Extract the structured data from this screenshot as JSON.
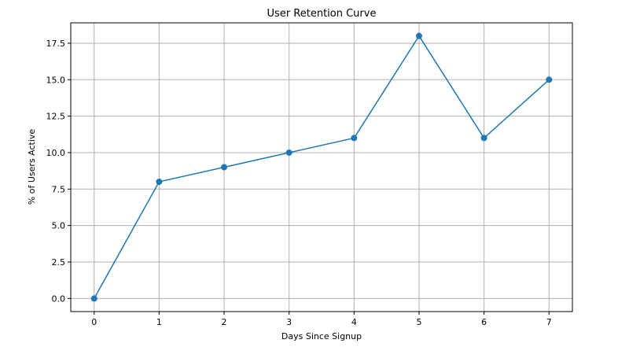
{
  "chart_data": {
    "type": "line",
    "title": "User Retention Curve",
    "xlabel": "Days Since Signup",
    "ylabel": "% of Users Active",
    "x": [
      0,
      1,
      2,
      3,
      4,
      5,
      6,
      7
    ],
    "series": [
      {
        "values": [
          0,
          8,
          9,
          10,
          11,
          18,
          11,
          15
        ],
        "color": "#1f77b4",
        "marker": "circle"
      }
    ],
    "xticks": [
      "0",
      "1",
      "2",
      "3",
      "4",
      "5",
      "6",
      "7"
    ],
    "yticks": [
      "0.0",
      "2.5",
      "5.0",
      "7.5",
      "10.0",
      "12.5",
      "15.0",
      "17.5"
    ],
    "xlim": [
      -0.36,
      7.36
    ],
    "ylim": [
      -0.9,
      18.9
    ],
    "grid": true,
    "legend": "none"
  }
}
